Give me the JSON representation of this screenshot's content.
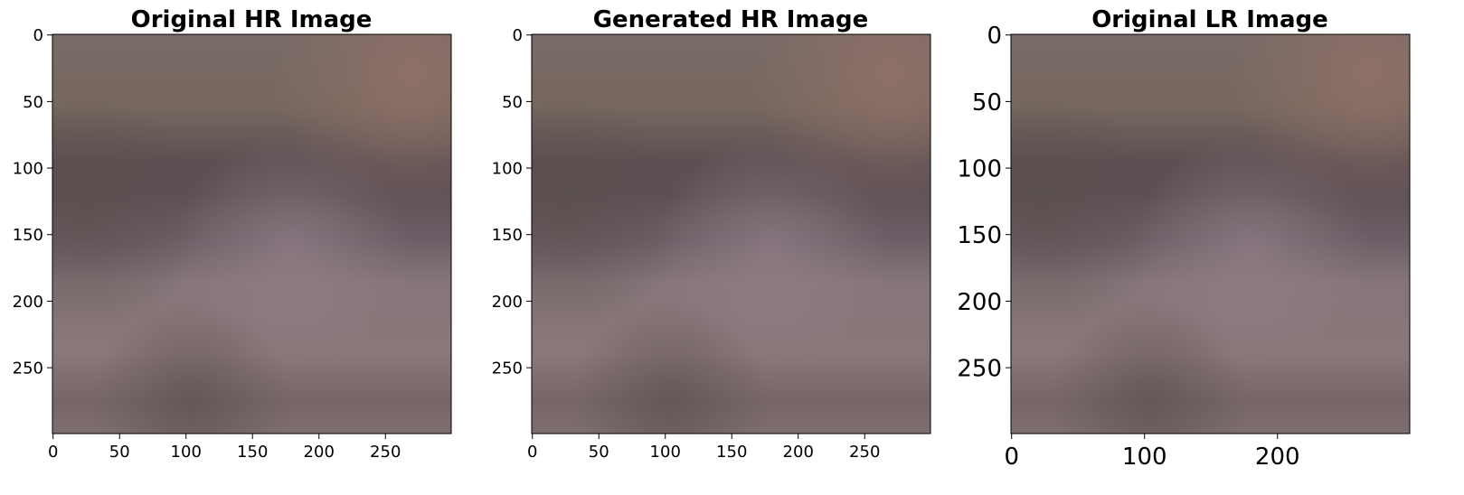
{
  "panels": [
    {
      "title": "Original HR Image",
      "y_ticks": [
        "0",
        "50",
        "100",
        "150",
        "200",
        "250"
      ],
      "x_ticks": [
        "0",
        "50",
        "100",
        "150",
        "200",
        "250"
      ],
      "x_range": [
        0,
        299
      ],
      "y_range": [
        0,
        299
      ]
    },
    {
      "title": "Generated HR Image",
      "y_ticks": [
        "0",
        "50",
        "100",
        "150",
        "200",
        "250"
      ],
      "x_ticks": [
        "0",
        "50",
        "100",
        "150",
        "200",
        "250"
      ],
      "x_range": [
        0,
        299
      ],
      "y_range": [
        0,
        299
      ]
    },
    {
      "title": "Original LR Image",
      "y_ticks": [
        "0",
        "50",
        "100",
        "150",
        "200",
        "250"
      ],
      "x_ticks": [
        "0",
        "100",
        "200"
      ],
      "x_range": [
        0,
        299
      ],
      "y_range": [
        0,
        299
      ]
    }
  ],
  "image_colors": {
    "top": "#7a6a66",
    "band_dark": "#5a4d51",
    "middle": "#8a7880",
    "bottom": "#7e6c70",
    "corner_warm": "#8a716b"
  }
}
